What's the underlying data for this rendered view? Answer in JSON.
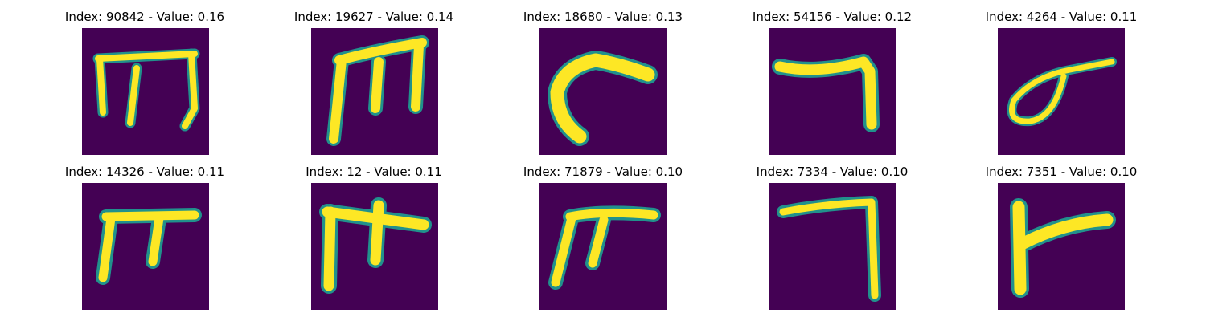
{
  "colors": {
    "background": "#440154",
    "mid": "#21918c",
    "high": "#fde725"
  },
  "panels": [
    {
      "title": "Index: 90842 - Value: 0.16",
      "glyph": "handwritten-m-glyph"
    },
    {
      "title": "Index: 19627 - Value: 0.14",
      "glyph": "handwritten-m-glyph"
    },
    {
      "title": "Index: 18680 - Value: 0.13",
      "glyph": "handwritten-curve-glyph"
    },
    {
      "title": "Index: 54156 - Value: 0.12",
      "glyph": "handwritten-seven-glyph"
    },
    {
      "title": "Index: 4264 - Value: 0.11",
      "glyph": "handwritten-loop-glyph"
    },
    {
      "title": "Index: 14326 - Value: 0.11",
      "glyph": "handwritten-pi-glyph"
    },
    {
      "title": "Index: 12 - Value: 0.11",
      "glyph": "handwritten-pi-glyph"
    },
    {
      "title": "Index: 71879 - Value: 0.10",
      "glyph": "handwritten-pi-glyph"
    },
    {
      "title": "Index: 7334 - Value: 0.10",
      "glyph": "handwritten-seven-glyph"
    },
    {
      "title": "Index: 7351 - Value: 0.10",
      "glyph": "handwritten-t-glyph"
    }
  ]
}
